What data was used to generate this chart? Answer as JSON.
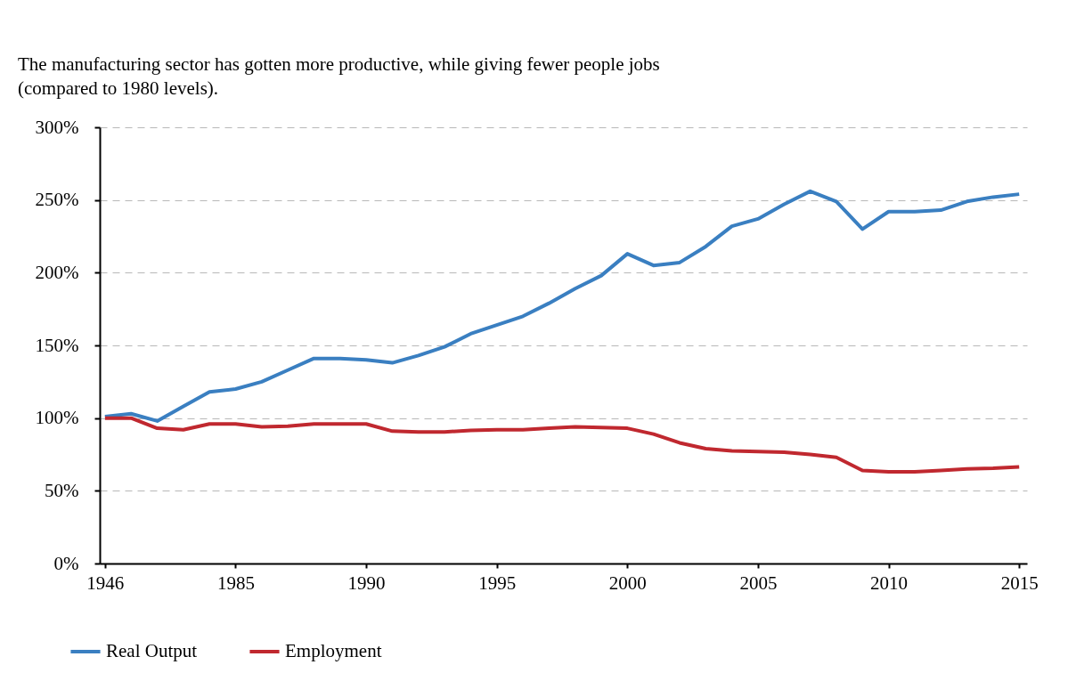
{
  "chart_data": {
    "type": "line",
    "title": "The manufacturing sector has gotten more productive, while giving fewer people jobs\n(compared to 1980 levels).",
    "categories": [
      "1946",
      null,
      null,
      null,
      null,
      "1985",
      null,
      null,
      null,
      null,
      "1990",
      null,
      null,
      null,
      null,
      "1995",
      null,
      null,
      null,
      null,
      "2000",
      null,
      null,
      null,
      null,
      "2005",
      null,
      null,
      null,
      null,
      "2010",
      null,
      null,
      null,
      null,
      "2015"
    ],
    "series": [
      {
        "name": "Real Output",
        "color": "#3a7fc1",
        "values": [
          101,
          103,
          98,
          108,
          118,
          120,
          125,
          133,
          141,
          141,
          140,
          138,
          143,
          149,
          158,
          164,
          170,
          179,
          189,
          198,
          213,
          205,
          207,
          218,
          232,
          237,
          247,
          256,
          249,
          230,
          242,
          242,
          243,
          249,
          252,
          254
        ]
      },
      {
        "name": "Employment",
        "color": "#c0282f",
        "values": [
          100,
          100,
          93,
          92,
          96,
          96,
          94,
          94.5,
          96,
          96,
          96,
          91,
          90.5,
          90.5,
          91.5,
          92,
          92,
          93,
          94,
          93.5,
          93,
          89,
          83,
          79,
          77.5,
          77,
          76.5,
          75,
          73,
          64,
          63,
          63,
          64,
          65,
          65.5,
          66.5
        ]
      }
    ],
    "ylim": [
      0,
      300
    ],
    "yticks": [
      {
        "value": 0,
        "label": "0%"
      },
      {
        "value": 50,
        "label": "50%"
      },
      {
        "value": 100,
        "label": "100%"
      },
      {
        "value": 150,
        "label": "150%"
      },
      {
        "value": 200,
        "label": "200%"
      },
      {
        "value": 250,
        "label": "250%"
      },
      {
        "value": 300,
        "label": "300%"
      }
    ],
    "grid": "y",
    "legend": "bottom left",
    "line_style": "solid",
    "marker": "none"
  }
}
